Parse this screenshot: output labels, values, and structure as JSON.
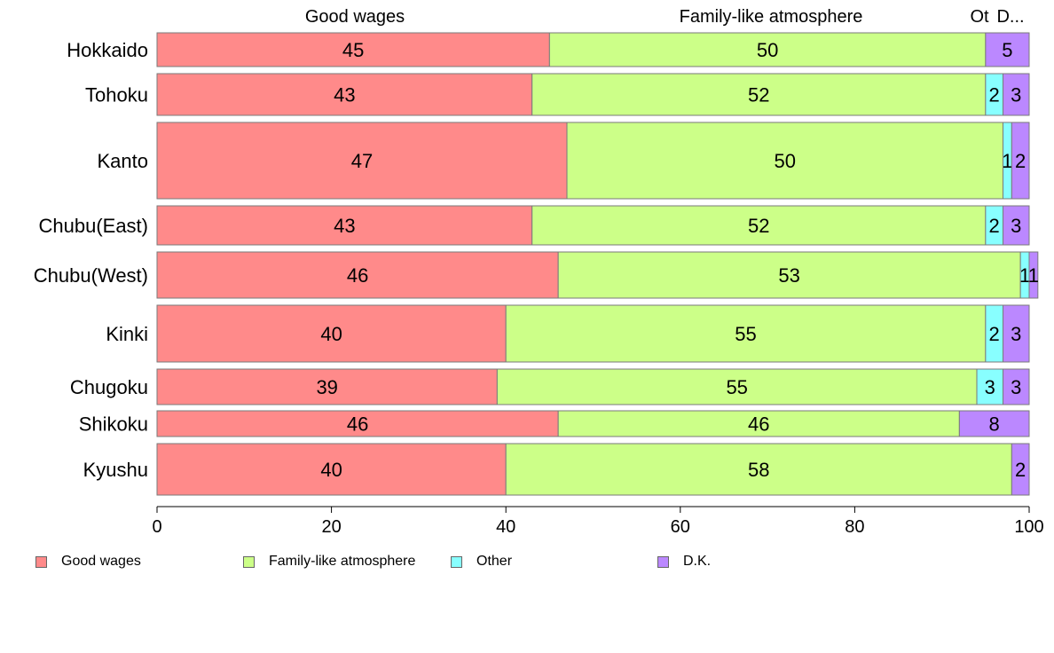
{
  "chart_data": {
    "type": "bar",
    "orientation": "horizontal",
    "stacked": true,
    "categories": [
      "Hokkaido",
      "Tohoku",
      "Kanto",
      "Chubu(East)",
      "Chubu(West)",
      "Kinki",
      "Chugoku",
      "Shikoku",
      "Kyushu"
    ],
    "series": [
      {
        "name": "Good wages",
        "color": "#FF8A8A",
        "values": [
          45,
          43,
          47,
          43,
          46,
          40,
          39,
          46,
          40
        ]
      },
      {
        "name": "Family-like atmosphere",
        "color": "#CCFF88",
        "values": [
          50,
          52,
          50,
          52,
          53,
          55,
          55,
          46,
          58
        ]
      },
      {
        "name": "Other",
        "color": "#88FFFF",
        "values": [
          0,
          2,
          1,
          2,
          1,
          2,
          3,
          0,
          0
        ]
      },
      {
        "name": "D.K.",
        "color": "#BB88FF",
        "values": [
          5,
          3,
          2,
          3,
          1,
          3,
          3,
          8,
          2
        ]
      }
    ],
    "top_labels": [
      "Good wages",
      "Family-like atmosphere",
      "Ot",
      "D..."
    ],
    "xlim": [
      0,
      100
    ],
    "xticks": [
      0,
      20,
      40,
      60,
      80,
      100
    ],
    "grid": false,
    "legend_position": "bottom"
  },
  "legend": {
    "items": [
      {
        "label": "Good wages",
        "color": "#FF8A8A"
      },
      {
        "label": "Family-like atmosphere",
        "color": "#CCFF88"
      },
      {
        "label": "Other",
        "color": "#88FFFF"
      },
      {
        "label": "D.K.",
        "color": "#BB88FF"
      }
    ]
  }
}
